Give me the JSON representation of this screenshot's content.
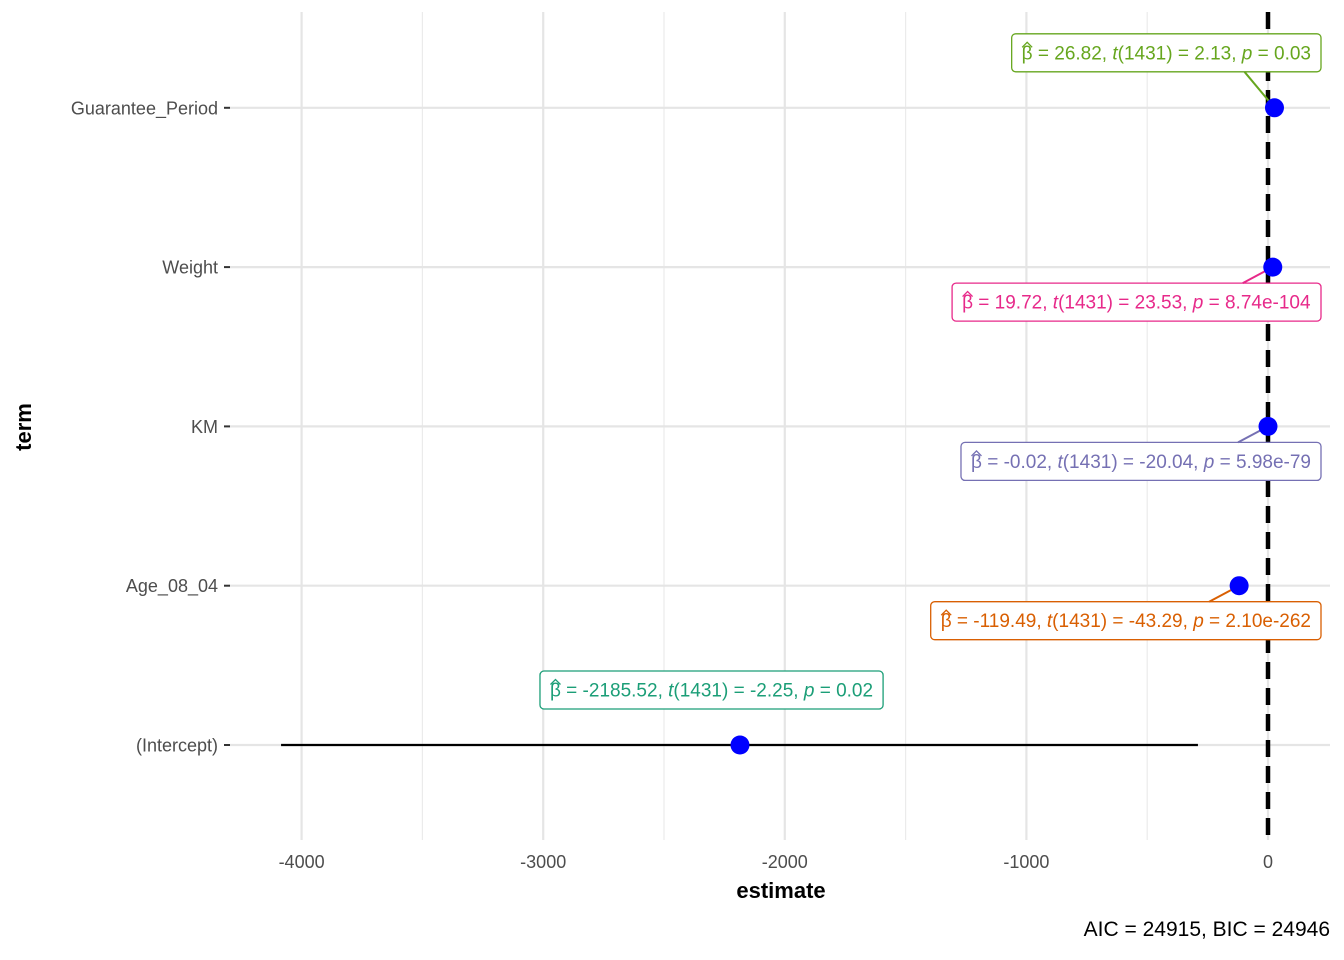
{
  "chart_data": {
    "type": "scatter",
    "subtype": "coefficient-plot",
    "xlabel": "estimate",
    "ylabel": "term",
    "caption": "AIC = 24915, BIC = 24946",
    "xlim": [
      -4200,
      300
    ],
    "x_ticks": [
      -4000,
      -3000,
      -2000,
      -1000,
      0
    ],
    "x_tick_labels": [
      "-4000",
      "-3000",
      "-2000",
      "-1000",
      "0"
    ],
    "grid": true,
    "reference_line": {
      "x": 0,
      "style": "dashed",
      "color": "#000000"
    },
    "point_color": "#0000FF",
    "terms": [
      {
        "term": "(Intercept)",
        "estimate": -2185.52,
        "ci_low": -4085,
        "ci_high": -290,
        "label_color": "#1B9E77",
        "label": {
          "b": "-2185.52",
          "df": "1431",
          "t": "-2.25",
          "p": "0.02"
        },
        "label_side": "above"
      },
      {
        "term": "Age_08_04",
        "estimate": -119.49,
        "ci_low": -124.9,
        "ci_high": -114.1,
        "label_color": "#D95F02",
        "label": {
          "b": "-119.49",
          "df": "1431",
          "t": "-43.29",
          "p": "2.10e-262"
        },
        "label_side": "below"
      },
      {
        "term": "KM",
        "estimate": -0.02,
        "ci_low": -0.022,
        "ci_high": -0.018,
        "label_color": "#7570B3",
        "label": {
          "b": "-0.02",
          "df": "1431",
          "t": "-20.04",
          "p": "5.98e-79"
        },
        "label_side": "below"
      },
      {
        "term": "Weight",
        "estimate": 19.72,
        "ci_low": 18.08,
        "ci_high": 21.36,
        "label_color": "#E7298A",
        "label": {
          "b": "19.72",
          "df": "1431",
          "t": "23.53",
          "p": "8.74e-104"
        },
        "label_side": "below"
      },
      {
        "term": "Guarantee_Period",
        "estimate": 26.82,
        "ci_low": 2.12,
        "ci_high": 51.52,
        "label_color": "#66A61E",
        "label": {
          "b": "26.82",
          "df": "1431",
          "t": "2.13",
          "p": "0.03"
        },
        "label_side": "above"
      }
    ]
  }
}
